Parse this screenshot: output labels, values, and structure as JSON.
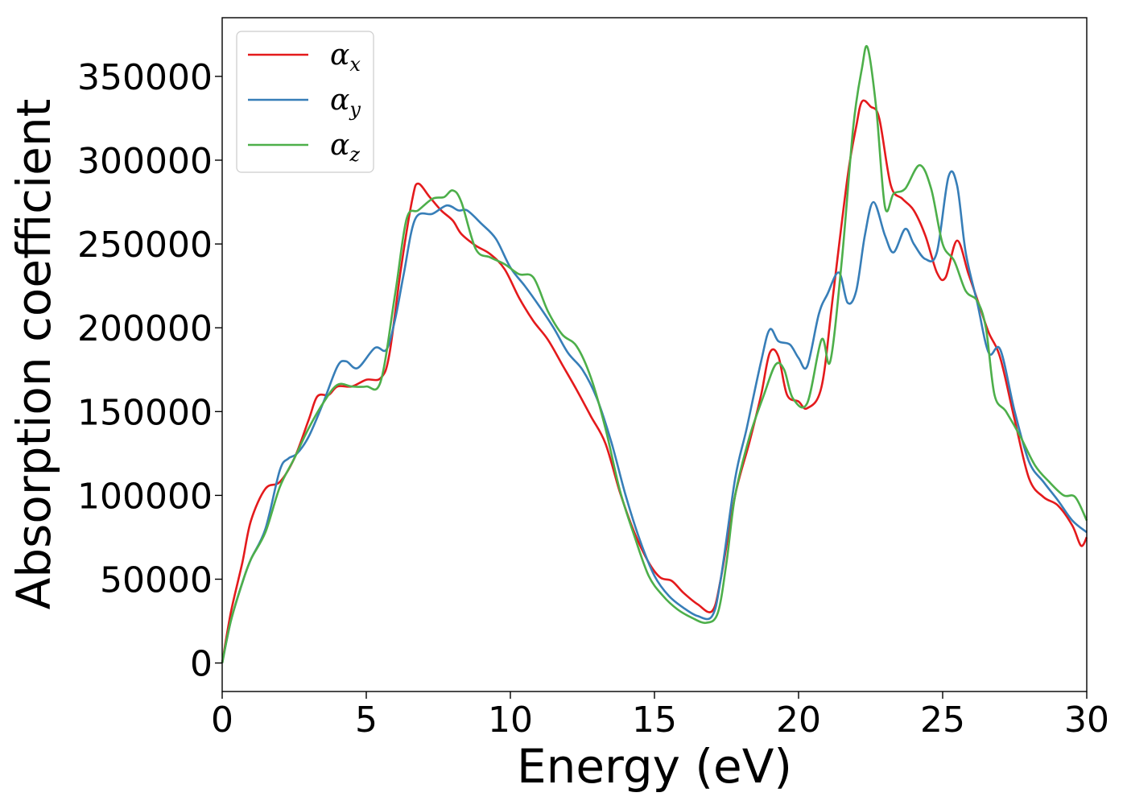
{
  "chart_data": {
    "type": "line",
    "title": "",
    "xlabel": "Energy (eV)",
    "ylabel": "Absorption coefficient",
    "xlim": [
      0,
      30
    ],
    "ylim": [
      -17000,
      385000
    ],
    "xticks": [
      0,
      5,
      10,
      15,
      20,
      25,
      30
    ],
    "xtick_labels": [
      "0",
      "5",
      "10",
      "15",
      "20",
      "25",
      "30"
    ],
    "yticks": [
      0,
      50000,
      100000,
      150000,
      200000,
      250000,
      300000,
      350000
    ],
    "ytick_labels": [
      "0",
      "50000",
      "100000",
      "150000",
      "200000",
      "250000",
      "300000",
      "350000"
    ],
    "grid": false,
    "legend_position": "top-left",
    "series": [
      {
        "name": "α_x",
        "symbol": "α",
        "subscript": "x",
        "color": "#e41a1c",
        "points": [
          [
            0,
            0
          ],
          [
            0.3,
            30000
          ],
          [
            0.7,
            60000
          ],
          [
            1,
            85000
          ],
          [
            1.5,
            104000
          ],
          [
            2,
            108000
          ],
          [
            2.5,
            122000
          ],
          [
            3,
            145000
          ],
          [
            3.3,
            159000
          ],
          [
            3.7,
            160000
          ],
          [
            4,
            165000
          ],
          [
            4.5,
            165000
          ],
          [
            5,
            169000
          ],
          [
            5.5,
            170000
          ],
          [
            5.8,
            184000
          ],
          [
            6.2,
            235000
          ],
          [
            6.6,
            277000
          ],
          [
            6.8,
            286000
          ],
          [
            7.2,
            278000
          ],
          [
            7.6,
            270000
          ],
          [
            8,
            264000
          ],
          [
            8.3,
            256000
          ],
          [
            8.8,
            249000
          ],
          [
            9.3,
            244000
          ],
          [
            9.8,
            235000
          ],
          [
            10.3,
            218000
          ],
          [
            10.8,
            204000
          ],
          [
            11.3,
            193000
          ],
          [
            11.8,
            178000
          ],
          [
            12.3,
            163000
          ],
          [
            12.8,
            147000
          ],
          [
            13.3,
            131000
          ],
          [
            13.8,
            102000
          ],
          [
            14.3,
            78000
          ],
          [
            14.8,
            60000
          ],
          [
            15.2,
            51000
          ],
          [
            15.6,
            49000
          ],
          [
            16,
            42000
          ],
          [
            16.5,
            35000
          ],
          [
            17,
            31000
          ],
          [
            17.3,
            50000
          ],
          [
            17.8,
            100000
          ],
          [
            18.3,
            132000
          ],
          [
            18.7,
            160000
          ],
          [
            19,
            185000
          ],
          [
            19.3,
            183000
          ],
          [
            19.6,
            160000
          ],
          [
            20,
            156000
          ],
          [
            20.3,
            152000
          ],
          [
            20.8,
            165000
          ],
          [
            21.2,
            220000
          ],
          [
            21.7,
            290000
          ],
          [
            22,
            320000
          ],
          [
            22.2,
            335000
          ],
          [
            22.5,
            332000
          ],
          [
            22.8,
            325000
          ],
          [
            23.2,
            285000
          ],
          [
            23.6,
            277000
          ],
          [
            24,
            270000
          ],
          [
            24.4,
            255000
          ],
          [
            24.8,
            233000
          ],
          [
            25.1,
            230000
          ],
          [
            25.5,
            252000
          ],
          [
            25.9,
            232000
          ],
          [
            26.3,
            212000
          ],
          [
            26.6,
            197000
          ],
          [
            27,
            182000
          ],
          [
            27.5,
            145000
          ],
          [
            28,
            110000
          ],
          [
            28.5,
            99000
          ],
          [
            29,
            94000
          ],
          [
            29.5,
            82000
          ],
          [
            29.8,
            70000
          ],
          [
            30,
            75000
          ]
        ]
      },
      {
        "name": "α_y",
        "symbol": "α",
        "subscript": "y",
        "color": "#377eb8",
        "points": [
          [
            0,
            0
          ],
          [
            0.3,
            25000
          ],
          [
            0.7,
            48000
          ],
          [
            1,
            62000
          ],
          [
            1.5,
            80000
          ],
          [
            2,
            115000
          ],
          [
            2.3,
            122000
          ],
          [
            2.6,
            125000
          ],
          [
            3,
            135000
          ],
          [
            3.5,
            155000
          ],
          [
            4,
            177000
          ],
          [
            4.3,
            180000
          ],
          [
            4.7,
            176000
          ],
          [
            5.3,
            188000
          ],
          [
            5.7,
            187000
          ],
          [
            6,
            205000
          ],
          [
            6.3,
            232000
          ],
          [
            6.7,
            265000
          ],
          [
            7.3,
            268000
          ],
          [
            7.8,
            273000
          ],
          [
            8.2,
            270000
          ],
          [
            8.5,
            270000
          ],
          [
            9,
            262000
          ],
          [
            9.5,
            253000
          ],
          [
            10,
            236000
          ],
          [
            10.5,
            225000
          ],
          [
            11,
            213000
          ],
          [
            11.5,
            200000
          ],
          [
            12,
            185000
          ],
          [
            12.5,
            175000
          ],
          [
            13,
            158000
          ],
          [
            13.5,
            132000
          ],
          [
            14,
            100000
          ],
          [
            14.5,
            73000
          ],
          [
            15,
            52000
          ],
          [
            15.5,
            40000
          ],
          [
            16,
            33000
          ],
          [
            16.5,
            28000
          ],
          [
            17,
            28000
          ],
          [
            17.3,
            50000
          ],
          [
            17.8,
            110000
          ],
          [
            18.2,
            140000
          ],
          [
            18.7,
            180000
          ],
          [
            19,
            199000
          ],
          [
            19.3,
            192000
          ],
          [
            19.7,
            190000
          ],
          [
            20,
            182000
          ],
          [
            20.3,
            177000
          ],
          [
            20.7,
            208000
          ],
          [
            21,
            220000
          ],
          [
            21.4,
            233000
          ],
          [
            21.7,
            215000
          ],
          [
            22,
            222000
          ],
          [
            22.3,
            255000
          ],
          [
            22.6,
            275000
          ],
          [
            23,
            255000
          ],
          [
            23.3,
            245000
          ],
          [
            23.7,
            259000
          ],
          [
            24,
            250000
          ],
          [
            24.4,
            241000
          ],
          [
            24.8,
            245000
          ],
          [
            25.2,
            290000
          ],
          [
            25.5,
            285000
          ],
          [
            25.8,
            245000
          ],
          [
            26.2,
            215000
          ],
          [
            26.6,
            185000
          ],
          [
            27,
            187000
          ],
          [
            27.5,
            150000
          ],
          [
            28,
            120000
          ],
          [
            28.5,
            108000
          ],
          [
            29,
            97000
          ],
          [
            29.5,
            85000
          ],
          [
            30,
            78000
          ]
        ]
      },
      {
        "name": "α_z",
        "symbol": "α",
        "subscript": "z",
        "color": "#4daf4a",
        "points": [
          [
            0,
            0
          ],
          [
            0.3,
            25000
          ],
          [
            0.7,
            48000
          ],
          [
            1,
            62000
          ],
          [
            1.5,
            78000
          ],
          [
            2,
            105000
          ],
          [
            2.5,
            122000
          ],
          [
            3,
            140000
          ],
          [
            3.5,
            155000
          ],
          [
            4,
            166000
          ],
          [
            4.5,
            165000
          ],
          [
            5,
            165000
          ],
          [
            5.5,
            168000
          ],
          [
            6,
            220000
          ],
          [
            6.4,
            265000
          ],
          [
            6.8,
            270000
          ],
          [
            7.3,
            277000
          ],
          [
            7.7,
            278000
          ],
          [
            8,
            282000
          ],
          [
            8.3,
            275000
          ],
          [
            8.8,
            247000
          ],
          [
            9.3,
            242000
          ],
          [
            9.8,
            238000
          ],
          [
            10.3,
            232000
          ],
          [
            10.8,
            230000
          ],
          [
            11.3,
            210000
          ],
          [
            11.8,
            196000
          ],
          [
            12.3,
            189000
          ],
          [
            12.8,
            170000
          ],
          [
            13.3,
            140000
          ],
          [
            13.8,
            103000
          ],
          [
            14.3,
            76000
          ],
          [
            14.8,
            52000
          ],
          [
            15.3,
            40000
          ],
          [
            15.8,
            32000
          ],
          [
            16.3,
            27000
          ],
          [
            16.8,
            24000
          ],
          [
            17.2,
            30000
          ],
          [
            17.5,
            60000
          ],
          [
            17.8,
            100000
          ],
          [
            18.3,
            135000
          ],
          [
            18.8,
            160000
          ],
          [
            19.2,
            178000
          ],
          [
            19.5,
            175000
          ],
          [
            19.8,
            158000
          ],
          [
            20.3,
            155000
          ],
          [
            20.8,
            193000
          ],
          [
            21.1,
            180000
          ],
          [
            21.5,
            240000
          ],
          [
            21.9,
            320000
          ],
          [
            22.2,
            355000
          ],
          [
            22.4,
            367000
          ],
          [
            22.7,
            330000
          ],
          [
            23,
            272000
          ],
          [
            23.3,
            280000
          ],
          [
            23.7,
            283000
          ],
          [
            24.2,
            297000
          ],
          [
            24.6,
            283000
          ],
          [
            25,
            250000
          ],
          [
            25.4,
            240000
          ],
          [
            25.8,
            222000
          ],
          [
            26.2,
            216000
          ],
          [
            26.5,
            200000
          ],
          [
            26.8,
            160000
          ],
          [
            27.2,
            150000
          ],
          [
            27.7,
            135000
          ],
          [
            28.2,
            118000
          ],
          [
            28.7,
            108000
          ],
          [
            29.2,
            100000
          ],
          [
            29.6,
            99000
          ],
          [
            30,
            85000
          ]
        ]
      }
    ]
  }
}
